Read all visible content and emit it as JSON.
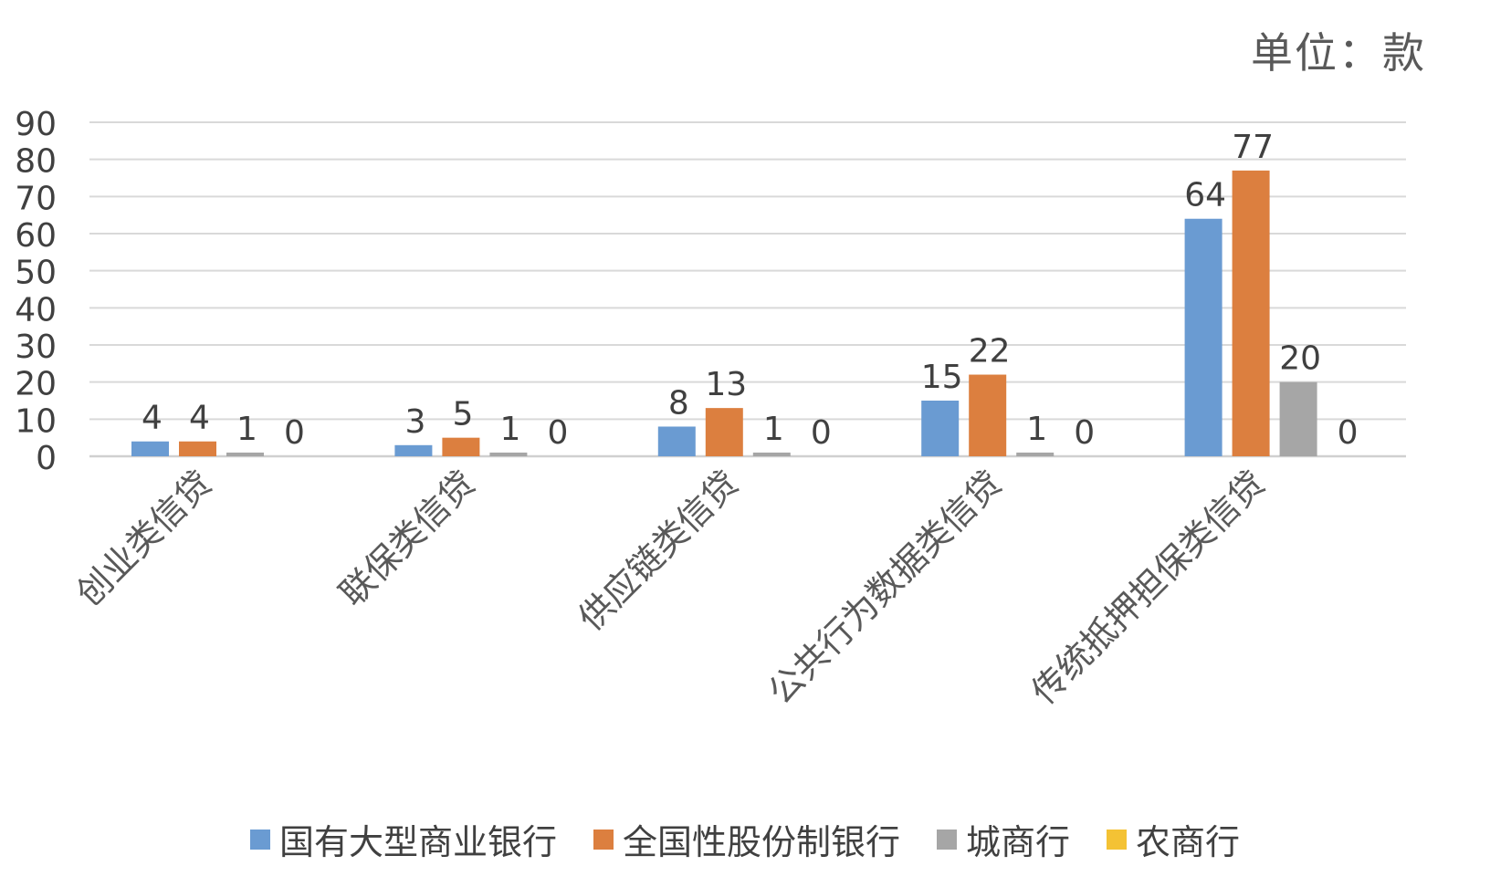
{
  "chart_data": {
    "type": "bar",
    "unit_label": "单位：款",
    "categories": [
      "创业类信贷",
      "联保类信贷",
      "供应链类信贷",
      "公共行为数据类信贷",
      "传统抵押担保类信贷"
    ],
    "series": [
      {
        "name": "国有大型商业银行",
        "color": "#6a9bd2",
        "values": [
          4,
          3,
          8,
          15,
          64
        ]
      },
      {
        "name": "全国性股份制银行",
        "color": "#dc7f3f",
        "values": [
          4,
          5,
          13,
          22,
          77
        ]
      },
      {
        "name": "城商行",
        "color": "#a6a6a6",
        "values": [
          1,
          1,
          1,
          1,
          20
        ]
      },
      {
        "name": "农商行",
        "color": "#f4c234",
        "values": [
          0,
          0,
          0,
          0,
          0
        ]
      }
    ],
    "ylim": [
      0,
      90
    ],
    "yticks": [
      "0",
      "10",
      "20",
      "30",
      "40",
      "50",
      "60",
      "70",
      "80",
      "90"
    ],
    "grid": true,
    "legend_position": "bottom"
  }
}
